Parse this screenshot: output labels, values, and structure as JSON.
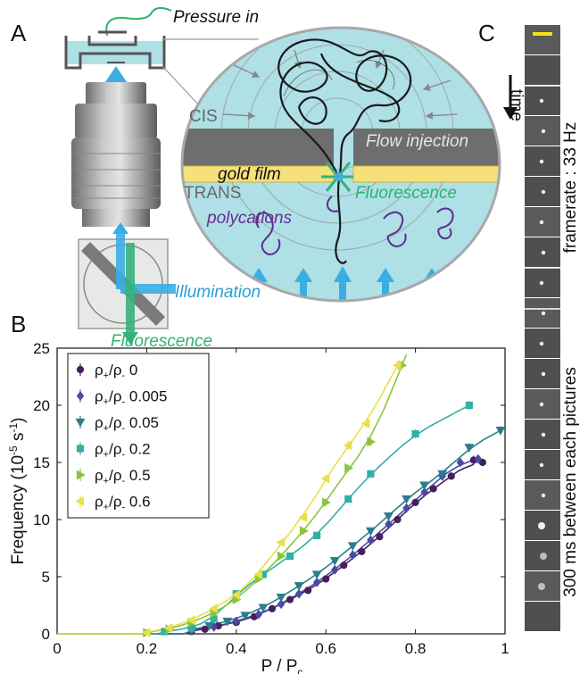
{
  "panels": {
    "a": "A",
    "b": "B",
    "c": "C"
  },
  "panel_a": {
    "pressure_in": "Pressure in",
    "cis": "CIS",
    "flow_injection": "Flow injection",
    "gold_film": "gold film",
    "fluorescence_inset": "Fluorescence",
    "trans": "TRANS",
    "polycations": "polycations",
    "illumination": "Illumination",
    "fluorescence_path": "Fluorescence"
  },
  "panel_c": {
    "time_label": "time",
    "framerate_label": "framerate : 33 Hz",
    "interval_label": "300 ms between each pictures",
    "scale_bar_color": "#f2e411"
  },
  "colors": {
    "water": "#aee0e6",
    "membrane": "#6e6e6e",
    "gold": "#f5e07a",
    "illumination": "#3aaee2",
    "fluorescence": "#35b27a",
    "polymer": "#5b2d8e",
    "text_blue": "#2a9fd6",
    "text_green": "#2fb36e",
    "text_purple": "#6a2c91"
  },
  "chart_data": {
    "type": "scatter",
    "xlabel": "P / P",
    "xlabel_sub": "c",
    "ylabel": "Frequency (10",
    "ylabel_sup": "-5",
    "ylabel_rest": " s",
    "ylabel_sup2": "-1",
    "ylabel_end": ")",
    "xlim": [
      0,
      1
    ],
    "ylim": [
      0,
      25
    ],
    "xticks": [
      "0",
      "0.2",
      "0.4",
      "0.6",
      "0.8",
      "1"
    ],
    "xtick_values": [
      0,
      0.2,
      0.4,
      0.6,
      0.8,
      1
    ],
    "yticks": [
      "0",
      "5",
      "10",
      "15",
      "20",
      "25"
    ],
    "ytick_values": [
      0,
      5,
      10,
      15,
      20,
      25
    ],
    "legend_position": "top-left",
    "series": [
      {
        "name": "ρ+/ρ- 0",
        "sym": "ρ",
        "sub1": "+",
        "sub2": "-",
        "ratio": "0",
        "color": "#46205e",
        "marker": "circle",
        "x": [
          0.3,
          0.33,
          0.36,
          0.4,
          0.44,
          0.48,
          0.52,
          0.56,
          0.6,
          0.64,
          0.68,
          0.72,
          0.76,
          0.8,
          0.84,
          0.88,
          0.93,
          0.95
        ],
        "y": [
          0.2,
          0.4,
          0.7,
          1.0,
          1.5,
          2.2,
          3.0,
          3.8,
          4.8,
          6.0,
          7.2,
          8.5,
          10.0,
          11.5,
          12.7,
          13.8,
          15.2,
          15.0
        ],
        "fit": [
          0.28,
          0.93
        ]
      },
      {
        "name": "ρ+/ρ- 0.005",
        "sym": "ρ",
        "sub1": "+",
        "sub2": "-",
        "ratio": "0.005",
        "color": "#4a4aa0",
        "marker": "diamond",
        "x": [
          0.3,
          0.35,
          0.4,
          0.45,
          0.5,
          0.54,
          0.58,
          0.62,
          0.66,
          0.7,
          0.74,
          0.78,
          0.82,
          0.86,
          0.9,
          0.94
        ],
        "y": [
          0.3,
          0.6,
          1.1,
          1.7,
          2.6,
          3.5,
          4.5,
          5.6,
          6.9,
          8.2,
          9.6,
          11.0,
          12.4,
          13.8,
          15.0,
          15.3
        ],
        "fit": [
          0.28,
          0.93
        ]
      },
      {
        "name": "ρ+/ρ- 0.05",
        "sym": "ρ",
        "sub1": "+",
        "sub2": "-",
        "ratio": "0.05",
        "color": "#2d7d8f",
        "marker": "tri-down",
        "x": [
          0.3,
          0.34,
          0.38,
          0.42,
          0.46,
          0.5,
          0.54,
          0.58,
          0.62,
          0.66,
          0.7,
          0.74,
          0.78,
          0.82,
          0.86,
          0.92,
          0.99
        ],
        "y": [
          0.3,
          0.7,
          1.1,
          1.6,
          2.3,
          3.2,
          4.2,
          5.2,
          6.4,
          7.7,
          9.0,
          10.3,
          11.8,
          13.0,
          14.0,
          16.3,
          17.8
        ],
        "fit": [
          0.28,
          0.99
        ]
      },
      {
        "name": "ρ+/ρ- 0.2",
        "sym": "ρ",
        "sub1": "+",
        "sub2": "-",
        "ratio": "0.2",
        "color": "#31b0a3",
        "marker": "square",
        "x": [
          0.24,
          0.3,
          0.35,
          0.4,
          0.46,
          0.52,
          0.58,
          0.65,
          0.7,
          0.8,
          0.92
        ],
        "y": [
          0.2,
          0.5,
          1.3,
          3.5,
          5.2,
          6.8,
          8.6,
          11.8,
          14.0,
          17.5,
          20.0
        ],
        "fit": [
          0.22,
          0.92
        ]
      },
      {
        "name": "ρ+/ρ- 0.5",
        "sym": "ρ",
        "sub1": "+",
        "sub2": "-",
        "ratio": "0.5",
        "color": "#8bc43d",
        "marker": "tri-right",
        "x": [
          0.2,
          0.25,
          0.3,
          0.35,
          0.4,
          0.45,
          0.5,
          0.55,
          0.6,
          0.65,
          0.7,
          0.77
        ],
        "y": [
          0.1,
          0.4,
          1.0,
          1.8,
          3.0,
          4.8,
          6.8,
          9.0,
          11.5,
          14.5,
          16.8,
          23.5
        ],
        "fit": [
          0.18,
          0.78
        ]
      },
      {
        "name": "ρ+/ρ- 0.6",
        "sym": "ρ",
        "sub1": "+",
        "sub2": "-",
        "ratio": "0.6",
        "color": "#e8e04a",
        "marker": "tri-left",
        "x": [
          0.2,
          0.25,
          0.3,
          0.35,
          0.4,
          0.45,
          0.5,
          0.55,
          0.6,
          0.65,
          0.69,
          0.76
        ],
        "y": [
          0.1,
          0.5,
          1.2,
          2.2,
          3.4,
          5.2,
          8.0,
          10.2,
          13.6,
          16.5,
          18.4,
          23.5
        ],
        "fit": [
          0.18,
          0.76
        ]
      }
    ]
  }
}
